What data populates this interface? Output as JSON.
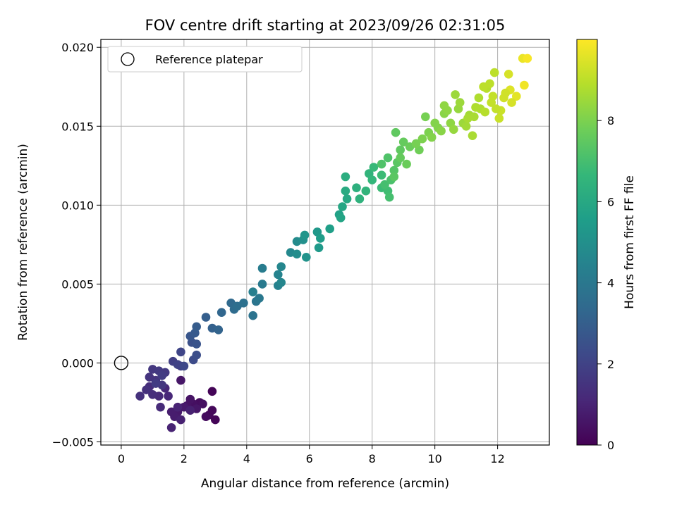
{
  "chart_data": {
    "type": "scatter",
    "title": "FOV centre drift starting at 2023/09/26 02:31:05",
    "xlabel": "Angular distance from reference (arcmin)",
    "ylabel": "Rotation from reference (arcmin)",
    "xlim": [
      -0.65,
      13.65
    ],
    "ylim": [
      -0.0052,
      0.0205
    ],
    "grid": true,
    "x_ticks": [
      0,
      2,
      4,
      6,
      8,
      10,
      12
    ],
    "y_ticks": [
      -0.005,
      0.0,
      0.005,
      0.01,
      0.015,
      0.02
    ],
    "x_tick_labels": [
      "0",
      "2",
      "4",
      "6",
      "8",
      "10",
      "12"
    ],
    "y_tick_labels": [
      "−0.005",
      "0.000",
      "0.005",
      "0.010",
      "0.015",
      "0.020"
    ],
    "legend": {
      "position": "top-left",
      "label": "Reference platepar"
    },
    "reference_point": {
      "x": 0,
      "y": 0
    },
    "colorbar": {
      "label": "Hours from first FF file",
      "range": [
        0,
        10
      ],
      "ticks": [
        0,
        2,
        4,
        6,
        8
      ],
      "tick_labels": [
        "0",
        "2",
        "4",
        "6",
        "8"
      ],
      "colormap": "viridis",
      "colors": [
        "#440154",
        "#482878",
        "#3e4989",
        "#31688e",
        "#26828e",
        "#1f9e89",
        "#35b779",
        "#6ece58",
        "#b5de2b",
        "#fde725"
      ]
    },
    "points": [
      [
        2.9,
        -0.0018,
        0.1
      ],
      [
        3.0,
        -0.0036,
        0.1
      ],
      [
        2.8,
        -0.0033,
        0.2
      ],
      [
        2.9,
        -0.003,
        0.2
      ],
      [
        2.5,
        -0.0025,
        0.3
      ],
      [
        2.7,
        -0.0034,
        0.3
      ],
      [
        2.6,
        -0.0026,
        0.4
      ],
      [
        2.3,
        -0.0026,
        0.4
      ],
      [
        2.2,
        -0.0023,
        0.5
      ],
      [
        2.1,
        -0.0027,
        0.5
      ],
      [
        2.4,
        -0.0029,
        0.6
      ],
      [
        1.9,
        -0.0011,
        0.6
      ],
      [
        2.0,
        -0.0028,
        0.7
      ],
      [
        1.8,
        -0.0031,
        0.7
      ],
      [
        1.7,
        -0.0034,
        0.8
      ],
      [
        1.6,
        -0.0031,
        0.8
      ],
      [
        1.9,
        -0.0036,
        0.9
      ],
      [
        2.2,
        -0.003,
        0.9
      ],
      [
        1.6,
        -0.0041,
        1.0
      ],
      [
        1.8,
        -0.0028,
        1.0
      ],
      [
        1.5,
        -0.0021,
        1.1
      ],
      [
        1.4,
        -0.0016,
        1.1
      ],
      [
        1.2,
        -0.0021,
        1.2
      ],
      [
        1.25,
        -0.0028,
        1.2
      ],
      [
        1.0,
        -0.002,
        1.3
      ],
      [
        0.9,
        -0.0015,
        1.3
      ],
      [
        0.8,
        -0.0017,
        1.4
      ],
      [
        0.6,
        -0.0021,
        1.4
      ],
      [
        1.1,
        -0.0011,
        1.5
      ],
      [
        0.9,
        -0.0009,
        1.5
      ],
      [
        1.3,
        -0.0014,
        1.6
      ],
      [
        1.0,
        -0.0004,
        1.6
      ],
      [
        1.4,
        -0.0006,
        1.7
      ],
      [
        1.2,
        -0.0005,
        1.7
      ],
      [
        1.3,
        -0.0008,
        1.8
      ],
      [
        1.1,
        -0.0013,
        1.8
      ],
      [
        1.65,
        0.0001,
        1.9
      ],
      [
        1.9,
        -0.0002,
        1.9
      ],
      [
        1.8,
        -0.0001,
        2.0
      ],
      [
        1.9,
        0.0007,
        2.1
      ],
      [
        2.0,
        -0.0002,
        2.2
      ],
      [
        2.3,
        0.0002,
        2.3
      ],
      [
        2.4,
        0.0005,
        2.4
      ],
      [
        2.25,
        0.0013,
        2.5
      ],
      [
        2.4,
        0.0012,
        2.6
      ],
      [
        2.2,
        0.0017,
        2.7
      ],
      [
        2.35,
        0.0019,
        2.8
      ],
      [
        2.4,
        0.0023,
        2.9
      ],
      [
        2.7,
        0.0029,
        3.0
      ],
      [
        2.9,
        0.0022,
        3.1
      ],
      [
        3.1,
        0.0021,
        3.2
      ],
      [
        3.2,
        0.0032,
        3.3
      ],
      [
        3.5,
        0.0038,
        3.4
      ],
      [
        3.6,
        0.0034,
        3.5
      ],
      [
        3.7,
        0.0036,
        3.6
      ],
      [
        3.9,
        0.0038,
        3.7
      ],
      [
        4.2,
        0.003,
        3.8
      ],
      [
        4.3,
        0.0039,
        3.9
      ],
      [
        4.4,
        0.0041,
        4.0
      ],
      [
        4.5,
        0.005,
        4.1
      ],
      [
        4.5,
        0.006,
        4.2
      ],
      [
        4.2,
        0.0045,
        4.3
      ],
      [
        5.0,
        0.0049,
        4.4
      ],
      [
        5.0,
        0.0056,
        4.5
      ],
      [
        5.1,
        0.0061,
        4.6
      ],
      [
        5.1,
        0.0051,
        4.6
      ],
      [
        5.4,
        0.007,
        4.7
      ],
      [
        5.6,
        0.0077,
        4.8
      ],
      [
        5.6,
        0.0069,
        4.9
      ],
      [
        5.8,
        0.0078,
        5.0
      ],
      [
        5.9,
        0.0067,
        5.1
      ],
      [
        5.85,
        0.0081,
        5.2
      ],
      [
        6.25,
        0.0083,
        5.3
      ],
      [
        6.3,
        0.0073,
        5.4
      ],
      [
        6.35,
        0.0079,
        5.5
      ],
      [
        6.65,
        0.0085,
        5.6
      ],
      [
        6.95,
        0.0094,
        5.7
      ],
      [
        7.0,
        0.0092,
        5.8
      ],
      [
        7.05,
        0.0099,
        5.9
      ],
      [
        7.2,
        0.0104,
        6.0
      ],
      [
        7.15,
        0.0109,
        6.1
      ],
      [
        7.15,
        0.0118,
        6.2
      ],
      [
        7.5,
        0.0111,
        6.3
      ],
      [
        7.6,
        0.0104,
        6.4
      ],
      [
        7.8,
        0.0109,
        6.5
      ],
      [
        7.9,
        0.012,
        6.5
      ],
      [
        8.0,
        0.0116,
        6.6
      ],
      [
        8.05,
        0.0124,
        6.7
      ],
      [
        8.3,
        0.0119,
        6.8
      ],
      [
        8.3,
        0.0111,
        6.8
      ],
      [
        8.5,
        0.0109,
        6.9
      ],
      [
        8.55,
        0.0105,
        7.0
      ],
      [
        8.4,
        0.0113,
        7.0
      ],
      [
        8.6,
        0.0116,
        7.1
      ],
      [
        8.5,
        0.013,
        7.2
      ],
      [
        8.7,
        0.0122,
        7.3
      ],
      [
        8.8,
        0.0127,
        7.4
      ],
      [
        8.75,
        0.0146,
        7.5
      ],
      [
        8.9,
        0.0135,
        7.5
      ],
      [
        9.0,
        0.014,
        7.6
      ],
      [
        9.2,
        0.0137,
        7.7
      ],
      [
        9.5,
        0.0135,
        7.8
      ],
      [
        9.7,
        0.0156,
        7.9
      ],
      [
        9.8,
        0.0146,
        8.0
      ],
      [
        10.1,
        0.0149,
        8.1
      ],
      [
        10.3,
        0.0158,
        8.2
      ],
      [
        10.5,
        0.0152,
        8.3
      ],
      [
        10.75,
        0.0161,
        8.4
      ],
      [
        10.9,
        0.0152,
        8.5
      ],
      [
        11.1,
        0.0157,
        8.6
      ],
      [
        11.25,
        0.0156,
        8.7
      ],
      [
        11.45,
        0.0161,
        8.8
      ],
      [
        11.65,
        0.0174,
        8.9
      ],
      [
        11.9,
        0.0184,
        9.0
      ],
      [
        11.8,
        0.0165,
        9.1
      ],
      [
        12.1,
        0.016,
        9.2
      ],
      [
        12.2,
        0.0168,
        9.3
      ],
      [
        12.35,
        0.0183,
        9.4
      ],
      [
        12.4,
        0.0173,
        9.5
      ],
      [
        12.6,
        0.0169,
        9.6
      ],
      [
        12.8,
        0.0193,
        9.7
      ],
      [
        12.85,
        0.0176,
        9.8
      ],
      [
        12.95,
        0.0193,
        9.9
      ],
      [
        10.0,
        0.0152,
        8.1
      ],
      [
        10.2,
        0.0147,
        8.2
      ],
      [
        10.4,
        0.016,
        8.3
      ],
      [
        10.6,
        0.0148,
        8.4
      ],
      [
        10.8,
        0.0165,
        8.5
      ],
      [
        11.0,
        0.015,
        8.6
      ],
      [
        11.2,
        0.0144,
        8.7
      ],
      [
        11.4,
        0.0168,
        8.8
      ],
      [
        11.6,
        0.0159,
        8.9
      ],
      [
        11.75,
        0.0177,
        9.0
      ],
      [
        11.95,
        0.0161,
        9.1
      ],
      [
        12.05,
        0.0155,
        9.2
      ],
      [
        12.25,
        0.0171,
        9.3
      ],
      [
        12.45,
        0.0165,
        9.4
      ],
      [
        9.9,
        0.0143,
        8.1
      ],
      [
        9.6,
        0.0142,
        8.0
      ],
      [
        9.4,
        0.0139,
        7.9
      ],
      [
        9.1,
        0.0126,
        7.7
      ],
      [
        8.9,
        0.013,
        7.6
      ],
      [
        8.7,
        0.0118,
        7.4
      ],
      [
        8.3,
        0.0126,
        7.2
      ],
      [
        10.3,
        0.0163,
        8.3
      ],
      [
        10.65,
        0.017,
        8.5
      ],
      [
        11.05,
        0.0155,
        8.7
      ],
      [
        11.3,
        0.0162,
        8.8
      ],
      [
        11.55,
        0.0175,
        9.0
      ],
      [
        11.85,
        0.0169,
        9.1
      ]
    ]
  }
}
